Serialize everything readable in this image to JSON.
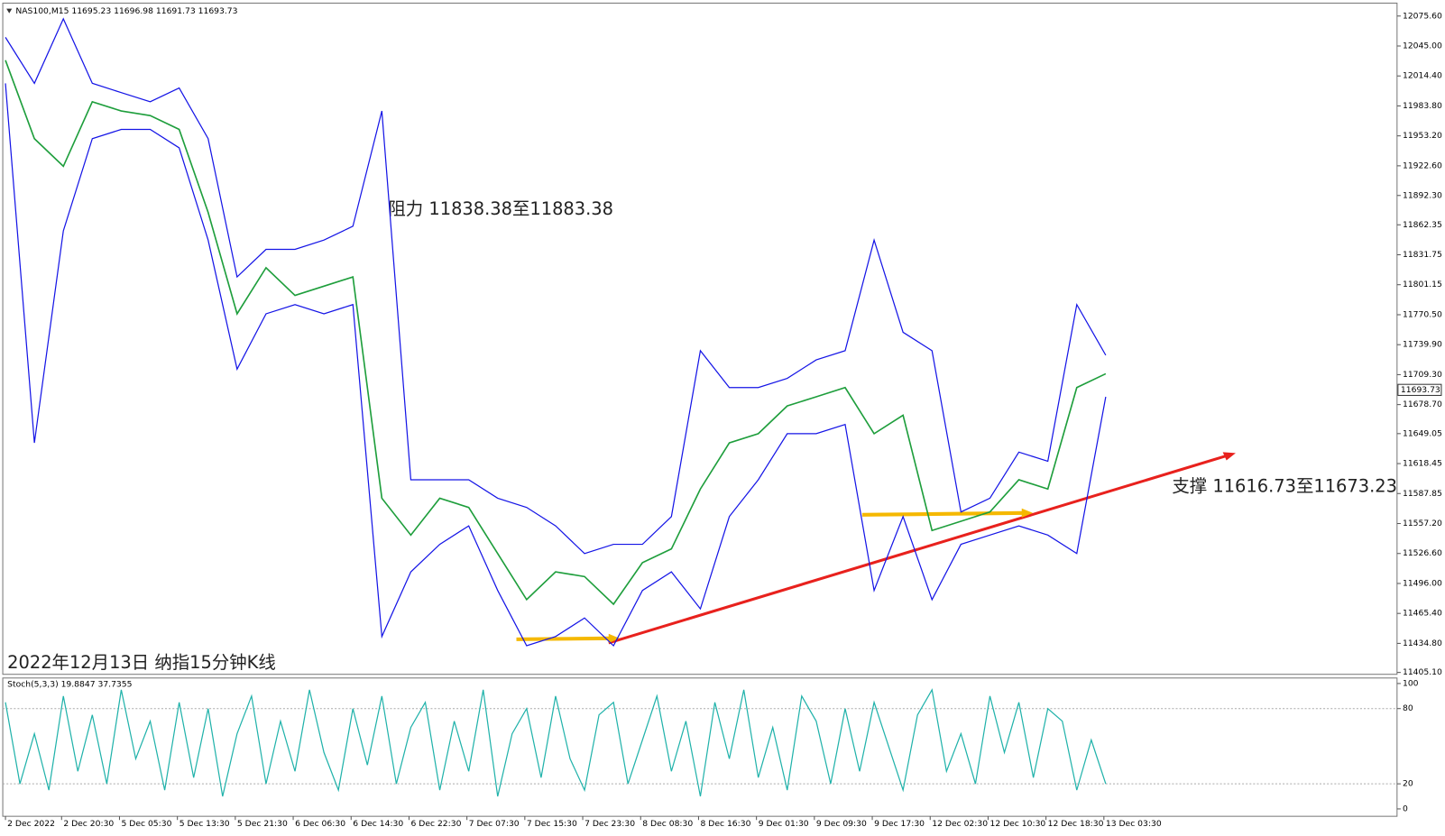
{
  "chart_data": [
    {
      "type": "line",
      "header": "NAS100,M15  11695.23 11696.98 11691.73 11693.73",
      "title": "2022年12月13日 纳指15分钟K线",
      "annotations": [
        "阻力 11838.38至11883.38",
        "支撑 11616.73至11673.23"
      ],
      "last_price": 11693.73,
      "xlim": [
        -1.5,
        769
      ],
      "x": [
        0,
        16,
        32,
        48,
        64,
        80,
        96,
        112,
        128,
        144,
        160,
        176,
        192,
        208,
        224,
        240,
        256,
        272,
        288,
        304,
        320,
        336,
        352,
        368,
        384,
        400,
        416,
        432,
        448,
        464,
        480,
        496,
        512,
        528,
        544,
        560,
        576,
        592,
        608
      ],
      "series": [
        {
          "name": "Close",
          "color": "#1e9e3c",
          "values": [
            12030.4,
            11950.4,
            11922.1,
            11988.0,
            11978.6,
            11973.9,
            11959.8,
            11875.0,
            11771.4,
            11818.5,
            11790.3,
            11799.7,
            11809.1,
            11583.1,
            11545.4,
            11583.1,
            11573.7,
            11526.6,
            11479.5,
            11507.8,
            11503.0,
            11474.8,
            11517.2,
            11531.3,
            11592.5,
            11639.6,
            11649.0,
            11677.3,
            11686.7,
            11696.1,
            11649.0,
            11667.8,
            11550.1,
            11559.5,
            11569.0,
            11601.9,
            11592.5,
            11696.1,
            11710.2
          ]
        },
        {
          "name": "Upper",
          "color": "#1414e6",
          "values": [
            12053.9,
            12006.9,
            12072.8,
            12006.9,
            11997.4,
            11988.0,
            12002.1,
            11950.4,
            11809.1,
            11837.3,
            11837.3,
            11846.8,
            11860.9,
            11978.6,
            11601.9,
            11601.9,
            11601.9,
            11583.1,
            11573.7,
            11554.8,
            11526.6,
            11536.0,
            11536.0,
            11564.3,
            11733.8,
            11696.1,
            11696.1,
            11705.5,
            11724.3,
            11733.8,
            11846.8,
            11752.6,
            11733.8,
            11569.0,
            11583.1,
            11630.2,
            11620.8,
            11780.8,
            11729.1
          ]
        },
        {
          "name": "Lower",
          "color": "#1414e6",
          "values": [
            12006.9,
            11639.6,
            11856.2,
            11950.4,
            11959.8,
            11959.8,
            11940.9,
            11846.8,
            11714.9,
            11771.4,
            11780.8,
            11771.4,
            11780.8,
            11441.8,
            11507.8,
            11536.0,
            11554.8,
            11488.9,
            11432.4,
            11441.8,
            11460.7,
            11432.4,
            11488.9,
            11507.8,
            11470.1,
            11564.3,
            11601.9,
            11649.0,
            11649.0,
            11658.4,
            11488.9,
            11564.3,
            11479.5,
            11536.0,
            11545.4,
            11554.8,
            11545.4,
            11526.6,
            11686.7
          ]
        }
      ],
      "ylim": [
        11403.2,
        12088.8
      ],
      "yticks": [
        {
          "value": 12075.6,
          "label": "12075.60"
        },
        {
          "value": 12045.0,
          "label": "12045.00"
        },
        {
          "value": 12014.4,
          "label": "12014.40"
        },
        {
          "value": 11983.8,
          "label": "11983.80"
        },
        {
          "value": 11953.2,
          "label": "11953.20"
        },
        {
          "value": 11922.6,
          "label": "11922.60"
        },
        {
          "value": 11892.3,
          "label": "11892.30"
        },
        {
          "value": 11862.35,
          "label": "11862.35"
        },
        {
          "value": 11831.75,
          "label": "11831.75"
        },
        {
          "value": 11801.15,
          "label": "11801.15"
        },
        {
          "value": 11770.5,
          "label": "11770.50"
        },
        {
          "value": 11739.9,
          "label": "11739.90"
        },
        {
          "value": 11709.3,
          "label": "11709.30"
        },
        {
          "value": 11678.7,
          "label": "11678.70"
        },
        {
          "value": 11649.05,
          "label": "11649.05"
        },
        {
          "value": 11618.45,
          "label": "11618.45"
        },
        {
          "value": 11587.85,
          "label": "11587.85"
        },
        {
          "value": 11557.2,
          "label": "11557.20"
        },
        {
          "value": 11526.6,
          "label": "11526.60"
        },
        {
          "value": 11496.0,
          "label": "11496.00"
        },
        {
          "value": 11465.4,
          "label": "11465.40"
        },
        {
          "value": 11434.8,
          "label": "11434.80"
        },
        {
          "value": 11405.1,
          "label": "11405.10"
        }
      ]
    },
    {
      "type": "line",
      "title": "Stoch(5,3,3) 19.8847 37.7355",
      "xlim": [
        -1.5,
        769
      ],
      "x": [
        0,
        8,
        16,
        24,
        32,
        40,
        48,
        56,
        64,
        72,
        80,
        88,
        96,
        104,
        112,
        120,
        128,
        136,
        144,
        152,
        160,
        168,
        176,
        184,
        192,
        200,
        208,
        216,
        224,
        232,
        240,
        248,
        256,
        264,
        272,
        280,
        288,
        296,
        304,
        312,
        320,
        328,
        336,
        344,
        352,
        360,
        368,
        376,
        384,
        392,
        400,
        408,
        416,
        424,
        432,
        440,
        448,
        456,
        464,
        472,
        480,
        488,
        496,
        504,
        512,
        520,
        528,
        536,
        544,
        552,
        560,
        568,
        576,
        584,
        592,
        600,
        608
      ],
      "series": [
        {
          "name": "K",
          "color": "#20b2aa",
          "values": [
            85,
            20,
            60,
            15,
            90,
            30,
            75,
            20,
            95,
            40,
            70,
            15,
            85,
            25,
            80,
            10,
            60,
            90,
            20,
            70,
            30,
            95,
            45,
            15,
            80,
            35,
            90,
            20,
            65,
            85,
            15,
            70,
            30,
            95,
            10,
            60,
            80,
            25,
            90,
            40,
            15,
            75,
            85,
            20,
            55,
            90,
            30,
            70,
            10,
            85,
            40,
            95,
            25,
            65,
            15,
            90,
            70,
            20,
            80,
            30,
            85,
            50,
            15,
            75,
            95,
            30,
            60,
            20,
            90,
            45,
            85,
            25,
            80,
            70,
            15,
            55,
            20
          ]
        }
      ],
      "ylim": [
        -5.9,
        104.4
      ],
      "yticks": [
        0,
        20,
        80,
        100
      ],
      "levels": [
        20,
        80
      ],
      "xticks": [
        {
          "value": 0,
          "label": "2 Dec 2022"
        },
        {
          "value": 31,
          "label": "2 Dec 20:30"
        },
        {
          "value": 63,
          "label": "5 Dec 05:30"
        },
        {
          "value": 95,
          "label": "5 Dec 13:30"
        },
        {
          "value": 127,
          "label": "5 Dec 21:30"
        },
        {
          "value": 159,
          "label": "6 Dec 06:30"
        },
        {
          "value": 191,
          "label": "6 Dec 14:30"
        },
        {
          "value": 223,
          "label": "6 Dec 22:30"
        },
        {
          "value": 255,
          "label": "7 Dec 07:30"
        },
        {
          "value": 287,
          "label": "7 Dec 15:30"
        },
        {
          "value": 319,
          "label": "7 Dec 23:30"
        },
        {
          "value": 351,
          "label": "8 Dec 08:30"
        },
        {
          "value": 383,
          "label": "8 Dec 16:30"
        },
        {
          "value": 415,
          "label": "9 Dec 01:30"
        },
        {
          "value": 447,
          "label": "9 Dec 09:30"
        },
        {
          "value": 479,
          "label": "9 Dec 17:30"
        },
        {
          "value": 511,
          "label": "12 Dec 02:30"
        },
        {
          "value": 543,
          "label": "12 Dec 10:30"
        },
        {
          "value": 575,
          "label": "12 Dec 18:30"
        },
        {
          "value": 607,
          "label": "13 Dec 03:30"
        }
      ]
    }
  ]
}
